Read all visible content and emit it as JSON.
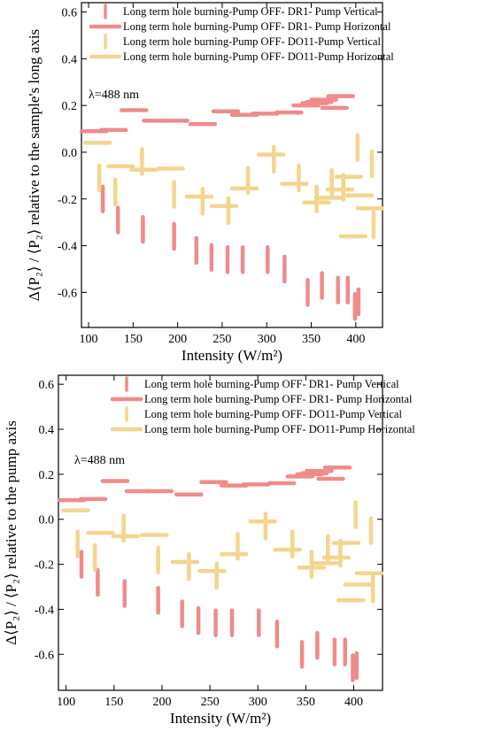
{
  "chart_data": [
    {
      "type": "scatter",
      "title": "",
      "xlabel": "Intensity (W/m²)",
      "ylabel": "Δ⟨P₂⟩ / ⟨P₂⟩ relative to the sample's long axis",
      "xlim": [
        92,
        430
      ],
      "ylim": [
        -0.75,
        0.64
      ],
      "xticks": [
        100,
        150,
        200,
        250,
        300,
        350,
        400
      ],
      "yticks": [
        -0.6,
        -0.4,
        -0.2,
        0.0,
        0.2,
        0.4,
        0.6
      ],
      "xtick_labels": [
        "100",
        "150",
        "200",
        "250",
        "300",
        "350",
        "400"
      ],
      "ytick_labels": [
        "-0.6",
        "-0.4",
        "-0.2",
        "0.0",
        "0.2",
        "0.4",
        "0.6"
      ],
      "annotation": "λ=488 nm",
      "legend_position": "top",
      "series": [
        {
          "name": "Long term hole burning-Pump OFF- DR1- Pump Vertical",
          "color": "#f08b8b",
          "marker": "vertical-dash",
          "x": [
            116,
            133,
            161,
            196,
            221,
            238,
            256,
            273,
            301,
            320,
            346,
            362,
            380,
            391,
            399,
            403
          ],
          "y": [
            -0.2,
            -0.29,
            -0.33,
            -0.36,
            -0.42,
            -0.45,
            -0.46,
            -0.46,
            -0.46,
            -0.5,
            -0.6,
            -0.57,
            -0.59,
            -0.59,
            -0.66,
            -0.64
          ]
        },
        {
          "name": "Long term hole burning-Pump OFF- DR1- Pump Horizontal",
          "color": "#f08b8b",
          "marker": "horizontal-dash",
          "x": [
            106,
            128,
            151,
            176,
            197,
            228,
            254,
            275,
            298,
            325,
            344,
            354,
            359,
            364,
            376,
            383
          ],
          "y": [
            0.09,
            0.095,
            0.18,
            0.135,
            0.135,
            0.12,
            0.175,
            0.16,
            0.165,
            0.17,
            0.2,
            0.21,
            0.215,
            0.225,
            0.19,
            0.24
          ]
        },
        {
          "name": "Long term hole burning-Pump OFF- DO11-Pump Vertical",
          "color": "#f3d58e",
          "marker": "vertical-dash",
          "x": [
            112,
            130,
            160,
            196,
            228,
            257,
            279,
            308,
            336,
            356,
            373,
            386,
            402,
            418,
            420
          ],
          "y": [
            -0.11,
            -0.17,
            -0.04,
            -0.18,
            -0.21,
            -0.25,
            -0.12,
            -0.03,
            -0.11,
            -0.2,
            -0.13,
            -0.15,
            0.02,
            -0.05,
            -0.31
          ]
        },
        {
          "name": "Long term hole burning-Pump OFF- DO11-Pump Horizontal",
          "color": "#f3d58e",
          "marker": "horizontal-dash",
          "x": [
            110,
            136,
            162,
            192,
            224,
            252,
            275,
            305,
            331,
            356,
            369,
            382,
            392,
            397,
            404,
            416
          ],
          "y": [
            0.04,
            -0.06,
            -0.075,
            -0.07,
            -0.19,
            -0.23,
            -0.155,
            -0.01,
            -0.135,
            -0.215,
            -0.195,
            -0.16,
            -0.105,
            -0.36,
            -0.185,
            -0.24
          ]
        }
      ]
    },
    {
      "type": "scatter",
      "title": "",
      "xlabel": "Intensity (W/m²)",
      "ylabel": "Δ⟨P₂⟩ / ⟨P₂⟩ relative to the pump axis",
      "xlim": [
        92,
        430
      ],
      "ylim": [
        -0.76,
        0.64
      ],
      "xticks": [
        100,
        150,
        200,
        250,
        300,
        350,
        400
      ],
      "yticks": [
        -0.6,
        -0.4,
        -0.2,
        0.0,
        0.2,
        0.4,
        0.6
      ],
      "xtick_labels": [
        "100",
        "150",
        "200",
        "250",
        "300",
        "350",
        "400"
      ],
      "ytick_labels": [
        "-0.6",
        "-0.4",
        "-0.2",
        "0.0",
        "0.2",
        "0.4",
        "0.6"
      ],
      "annotation": "λ=488 nm",
      "legend_position": "top",
      "series": [
        {
          "name": "Long term hole burning-Pump OFF- DR1- Pump Vertical",
          "color": "#f08b8b",
          "marker": "vertical-dash",
          "x": [
            116,
            133,
            161,
            196,
            221,
            238,
            256,
            273,
            301,
            320,
            346,
            362,
            380,
            391,
            399,
            403
          ],
          "y": [
            -0.2,
            -0.28,
            -0.33,
            -0.36,
            -0.42,
            -0.45,
            -0.46,
            -0.46,
            -0.46,
            -0.51,
            -0.6,
            -0.56,
            -0.59,
            -0.59,
            -0.66,
            -0.65
          ]
        },
        {
          "name": "Long term hole burning-Pump OFF- DR1- Pump Horizontal",
          "color": "#f08b8b",
          "marker": "horizontal-dash",
          "x": [
            106,
            128,
            151,
            176,
            197,
            228,
            254,
            275,
            298,
            325,
            344,
            354,
            359,
            364,
            376,
            383
          ],
          "y": [
            0.085,
            0.09,
            0.17,
            0.125,
            0.125,
            0.11,
            0.165,
            0.15,
            0.155,
            0.16,
            0.19,
            0.2,
            0.205,
            0.215,
            0.18,
            0.23
          ]
        },
        {
          "name": "Long term hole burning-Pump OFF- DO11-Pump Vertical",
          "color": "#f3d58e",
          "marker": "vertical-dash",
          "x": [
            112,
            130,
            160,
            196,
            228,
            257,
            279,
            308,
            336,
            356,
            373,
            386,
            402,
            418,
            420
          ],
          "y": [
            -0.11,
            -0.17,
            -0.04,
            -0.18,
            -0.21,
            -0.25,
            -0.12,
            -0.03,
            -0.11,
            -0.2,
            -0.13,
            -0.15,
            0.02,
            -0.05,
            -0.31
          ]
        },
        {
          "name": "Long term hole burning-Pump OFF- DO11-Pump Horizontal",
          "color": "#f3d58e",
          "marker": "horizontal-dash",
          "x": [
            110,
            136,
            162,
            192,
            224,
            252,
            275,
            305,
            331,
            356,
            369,
            382,
            392,
            397,
            404,
            416
          ],
          "y": [
            0.04,
            -0.06,
            -0.075,
            -0.07,
            -0.19,
            -0.23,
            -0.155,
            -0.01,
            -0.135,
            -0.215,
            -0.195,
            -0.17,
            -0.105,
            -0.36,
            -0.29,
            -0.24
          ]
        }
      ]
    }
  ]
}
